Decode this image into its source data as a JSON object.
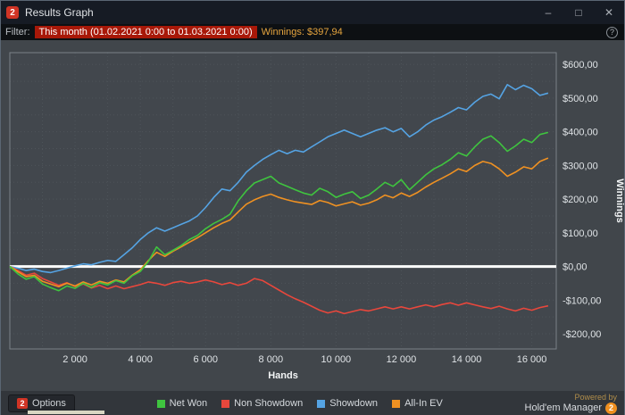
{
  "window": {
    "title": "Results Graph",
    "logo_text": "2",
    "controls": {
      "minimize": "–",
      "maximize": "□",
      "close": "✕"
    }
  },
  "filter": {
    "label": "Filter:",
    "range": "This month (01.02.2021 0:00 to 01.03.2021 0:00)",
    "winnings_label": "Winnings:",
    "winnings_value": "$397,94",
    "help": "?"
  },
  "colors": {
    "titlebar_bg": "#161b24",
    "filter_chip_bg": "#a81808",
    "winnings_text": "#e5a43e",
    "brand_red": "#d03425",
    "brand_orange": "#ef8f1f",
    "chart_bg": "#42474d"
  },
  "chart_data": {
    "type": "line",
    "title": "Results Graph",
    "xlabel": "Hands",
    "ylabel": "Winnings",
    "xlim": [
      0,
      16750
    ],
    "ylim": [
      -245,
      635
    ],
    "grid_x_step": 1000,
    "grid_y_step": 50,
    "grid_color": "#4e545a",
    "border_color": "#7a8188",
    "zero_line_color": "#ffffff",
    "axis_text_color": "#dfe3e6",
    "x_ticks": [
      {
        "v": 2000,
        "label": "2 000"
      },
      {
        "v": 4000,
        "label": "4 000"
      },
      {
        "v": 6000,
        "label": "6 000"
      },
      {
        "v": 8000,
        "label": "8 000"
      },
      {
        "v": 10000,
        "label": "10 000"
      },
      {
        "v": 12000,
        "label": "12 000"
      },
      {
        "v": 14000,
        "label": "14 000"
      },
      {
        "v": 16000,
        "label": "16 000"
      }
    ],
    "y_ticks": [
      {
        "v": 600,
        "label": "$600,00"
      },
      {
        "v": 500,
        "label": "$500,00"
      },
      {
        "v": 400,
        "label": "$400,00"
      },
      {
        "v": 300,
        "label": "$300,00"
      },
      {
        "v": 200,
        "label": "$200,00"
      },
      {
        "v": 100,
        "label": "$100,00"
      },
      {
        "v": 0,
        "label": "$0,00"
      },
      {
        "v": -100,
        "label": "-$100,00"
      },
      {
        "v": -200,
        "label": "-$200,00"
      }
    ],
    "x": [
      0,
      250,
      500,
      750,
      1000,
      1250,
      1500,
      1750,
      2000,
      2250,
      2500,
      2750,
      3000,
      3250,
      3500,
      3750,
      4000,
      4250,
      4500,
      4750,
      5000,
      5250,
      5500,
      5750,
      6000,
      6250,
      6500,
      6750,
      7000,
      7250,
      7500,
      7750,
      8000,
      8250,
      8500,
      8750,
      9000,
      9250,
      9500,
      9750,
      10000,
      10250,
      10500,
      10750,
      11000,
      11250,
      11500,
      11750,
      12000,
      12250,
      12500,
      12750,
      13000,
      13250,
      13500,
      13750,
      14000,
      14250,
      14500,
      14750,
      15000,
      15250,
      15500,
      15750,
      16000,
      16250,
      16500
    ],
    "series": [
      {
        "name": "Net Won",
        "color": "#3fc43f",
        "values": [
          0,
          -22,
          -38,
          -30,
          -52,
          -63,
          -72,
          -58,
          -65,
          -50,
          -62,
          -48,
          -55,
          -42,
          -50,
          -28,
          -15,
          15,
          58,
          35,
          48,
          62,
          80,
          92,
          112,
          128,
          140,
          155,
          195,
          225,
          248,
          258,
          268,
          248,
          238,
          228,
          218,
          212,
          232,
          222,
          205,
          215,
          222,
          202,
          212,
          230,
          250,
          238,
          258,
          228,
          250,
          272,
          290,
          302,
          318,
          338,
          328,
          355,
          378,
          388,
          368,
          342,
          358,
          378,
          368,
          392,
          398
        ]
      },
      {
        "name": "Non Showdown",
        "color": "#e8473c",
        "values": [
          0,
          -12,
          -26,
          -20,
          -36,
          -46,
          -56,
          -48,
          -60,
          -52,
          -64,
          -56,
          -66,
          -58,
          -66,
          -60,
          -54,
          -46,
          -50,
          -56,
          -48,
          -44,
          -50,
          -46,
          -40,
          -46,
          -54,
          -48,
          -56,
          -50,
          -36,
          -42,
          -56,
          -70,
          -84,
          -96,
          -106,
          -118,
          -130,
          -138,
          -132,
          -140,
          -134,
          -128,
          -132,
          -126,
          -120,
          -126,
          -120,
          -126,
          -120,
          -114,
          -120,
          -113,
          -108,
          -115,
          -108,
          -114,
          -120,
          -125,
          -118,
          -126,
          -132,
          -124,
          -130,
          -122,
          -117
        ]
      },
      {
        "name": "Showdown",
        "color": "#55a3e3",
        "values": [
          0,
          -5,
          -12,
          -8,
          -15,
          -18,
          -12,
          -5,
          2,
          8,
          5,
          12,
          18,
          15,
          35,
          55,
          80,
          100,
          115,
          105,
          115,
          125,
          135,
          150,
          175,
          205,
          230,
          225,
          250,
          280,
          300,
          318,
          332,
          345,
          335,
          345,
          340,
          355,
          370,
          385,
          395,
          405,
          395,
          385,
          395,
          405,
          412,
          400,
          410,
          385,
          400,
          420,
          435,
          445,
          458,
          472,
          465,
          488,
          505,
          512,
          498,
          540,
          525,
          538,
          528,
          508,
          515
        ]
      },
      {
        "name": "All-In EV",
        "color": "#ef9122",
        "values": [
          0,
          -16,
          -30,
          -26,
          -44,
          -52,
          -60,
          -50,
          -58,
          -46,
          -55,
          -44,
          -50,
          -40,
          -46,
          -26,
          -10,
          18,
          42,
          30,
          45,
          58,
          72,
          85,
          100,
          115,
          128,
          138,
          162,
          185,
          198,
          208,
          215,
          205,
          198,
          192,
          188,
          184,
          196,
          190,
          180,
          186,
          192,
          182,
          188,
          198,
          212,
          204,
          218,
          208,
          220,
          236,
          250,
          262,
          275,
          290,
          282,
          300,
          312,
          306,
          290,
          268,
          280,
          296,
          290,
          312,
          322
        ]
      }
    ],
    "legend_position": "bottom",
    "grid": true
  },
  "footer": {
    "options_label": "Options",
    "logo_badge": "2",
    "powered_by": "Powered by",
    "brand": "Hold'em Manager",
    "brand_badge": "2"
  }
}
